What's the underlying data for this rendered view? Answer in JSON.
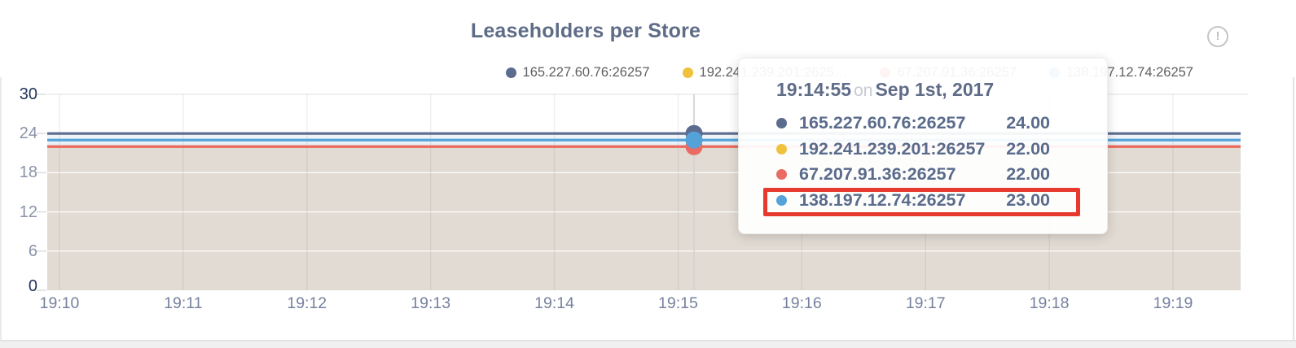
{
  "title": "Leaseholders per Store",
  "info_icon": {
    "glyph": "!"
  },
  "legend": {
    "items": [
      {
        "name": "165.227.60.76:26257",
        "display": "165.227.60.76:26257",
        "color": "#5b6c8f"
      },
      {
        "name": "192.241.239.201:26257",
        "display": "192.241.239.201:2625…",
        "color": "#efc13c"
      },
      {
        "name": "67.207.91.36:26257",
        "display": "67.207.91.36:26257",
        "color": "#e96b64"
      },
      {
        "name": "138.197.12.74:26257",
        "display": "138.197.12.74:26257",
        "color": "#54a2d8"
      }
    ]
  },
  "tooltip": {
    "time": "19:14:55",
    "connector": "on",
    "date": "Sep 1st, 2017",
    "highlight_color": "#e7392d",
    "rows": [
      {
        "name": "165.227.60.76:26257",
        "value": "24.00",
        "color": "#5b6c8f",
        "highlighted": false
      },
      {
        "name": "192.241.239.201:26257",
        "value": "22.00",
        "color": "#efc13c",
        "highlighted": false
      },
      {
        "name": "67.207.91.36:26257",
        "value": "22.00",
        "color": "#e96b64",
        "highlighted": false
      },
      {
        "name": "138.197.12.74:26257",
        "value": "23.00",
        "color": "#54a2d8",
        "highlighted": true
      }
    ]
  },
  "chart_data": {
    "type": "line",
    "title": "Leaseholders per Store",
    "xlabel": "",
    "ylabel": "",
    "x": [
      "19:10",
      "19:11",
      "19:12",
      "19:13",
      "19:14",
      "19:15",
      "19:16",
      "19:17",
      "19:18",
      "19:19"
    ],
    "y_ticks": [
      30,
      24,
      18,
      12,
      6,
      0
    ],
    "ylim": [
      0,
      30
    ],
    "grid": true,
    "area_fill": true,
    "fill_color": "#e2dbd3",
    "legend_position": "top-right",
    "series": [
      {
        "name": "165.227.60.76:26257",
        "color": "#5b6c8f",
        "values": [
          24,
          24,
          24,
          24,
          24,
          24,
          24,
          24,
          24,
          24
        ]
      },
      {
        "name": "192.241.239.201:26257",
        "color": "#efc13c",
        "values": [
          22,
          22,
          22,
          22,
          22,
          22,
          22,
          22,
          22,
          22
        ]
      },
      {
        "name": "67.207.91.36:26257",
        "color": "#e96b64",
        "values": [
          22,
          22,
          22,
          22,
          22,
          22,
          22,
          22,
          22,
          22
        ]
      },
      {
        "name": "138.197.12.74:26257",
        "color": "#54a2d8",
        "values": [
          23,
          23,
          23,
          23,
          23,
          23,
          23,
          23,
          23,
          23
        ]
      }
    ],
    "hover_point": {
      "time": "19:14:55",
      "date": "Sep 1st, 2017",
      "values": {
        "165.227.60.76:26257": 24,
        "192.241.239.201:26257": 22,
        "67.207.91.36:26257": 22,
        "138.197.12.74:26257": 23
      }
    }
  }
}
